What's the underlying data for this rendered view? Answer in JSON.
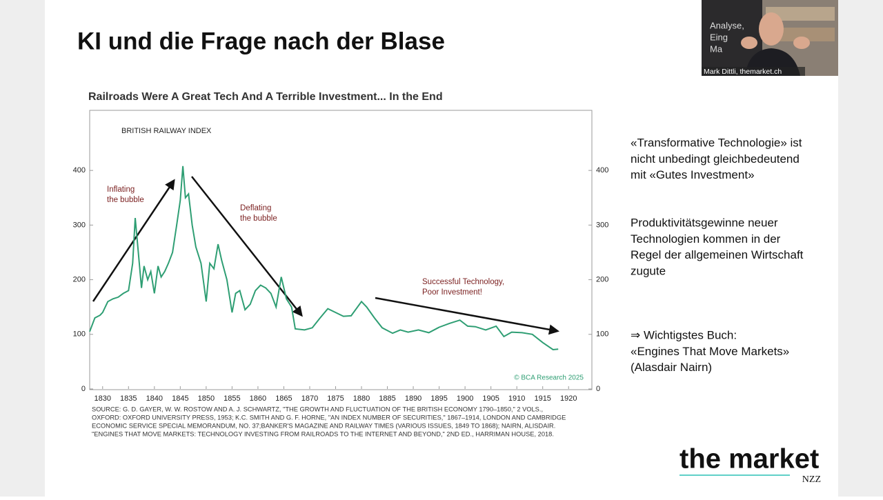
{
  "slide": {
    "title": "KI und die Frage nach der Blase",
    "points": [
      [
        "«Transformative Technologie» ist",
        "nicht unbedingt gleichbedeutend",
        "mit «Gutes Investment»"
      ],
      [
        "Produktivitätsgewinne neuer",
        "Technologien kommen in der",
        "Regel der allgemeinen Wirtschaft",
        "zugute"
      ],
      [
        "⇒ Wichtigstes Buch:",
        "«Engines That Move Markets»",
        "(Alasdair Nairn)"
      ]
    ],
    "logo": {
      "name": "the market",
      "sub": "NZZ"
    }
  },
  "video": {
    "caption": "Mark Dittli, themarket.ch",
    "backdrop": [
      "Analyse,",
      "Eing",
      "Ma"
    ]
  },
  "chart_data": {
    "type": "line",
    "title": "Railroads Were A Great Tech And A Terrible Investment... In the End",
    "subtitle": "BRITISH RAILWAY INDEX",
    "annotations": [
      [
        "Inflating",
        "the bubble"
      ],
      [
        "Deflating",
        "the bubble"
      ],
      [
        "Successful Technology,",
        "Poor Investment!"
      ]
    ],
    "credit": "© BCA Research 2025",
    "source": [
      "SOURCE: G. D. GAYER, W. W. ROSTOW AND A. J. SCHWARTZ, \"THE GROWTH AND FLUCTUATION OF THE BRITISH ECONOMY 1790–1850,\" 2 VOLS.,",
      "OXFORD: OXFORD UNIVERSITY PRESS, 1953;  K.C. SMITH AND G. F. HORNE, \"AN INDEX NUMBER OF SECURITIES,\" 1867–1914, LONDON AND CAMBRIDGE",
      "ECONOMIC SERVICE SPECIAL MEMORANDUM, NO. 37;BANKER'S MAGAZINE AND RAILWAY TIMES (VARIOUS ISSUES, 1849 TO 1868); NAIRN, ALISDAIR.",
      "\"ENGINES THAT MOVE MARKETS: TECHNOLOGY INVESTING FROM RAILROADS TO THE INTERNET AND BEYOND,\" 2ND ED., HARRIMAN HOUSE, 2018."
    ],
    "color": "#2e9e73",
    "x": [
      1827.5,
      1828.5,
      1829.5,
      1830,
      1831,
      1832,
      1833,
      1834,
      1835,
      1835.8,
      1836.3,
      1836.8,
      1837.5,
      1838,
      1838.7,
      1839.3,
      1840,
      1840.7,
      1841.3,
      1842,
      1842.7,
      1843.5,
      1844.3,
      1845,
      1845.5,
      1846,
      1846.6,
      1847.3,
      1848,
      1849,
      1850,
      1850.7,
      1851.5,
      1852.3,
      1853,
      1854,
      1855,
      1855.7,
      1856.5,
      1857.5,
      1858.5,
      1859.5,
      1860.5,
      1861.5,
      1862.5,
      1863.5,
      1864.5,
      1865.5,
      1866.5,
      1867.2,
      1869,
      1870.5,
      1872,
      1873.5,
      1875,
      1876.5,
      1878,
      1880,
      1881,
      1882.5,
      1884,
      1886,
      1887.5,
      1889,
      1891,
      1893,
      1895,
      1897,
      1899,
      1900.5,
      1902,
      1904,
      1906,
      1907.5,
      1909,
      1911,
      1913,
      1915,
      1917,
      1918
    ],
    "values": [
      105,
      130,
      135,
      140,
      160,
      165,
      168,
      175,
      180,
      230,
      313,
      260,
      185,
      225,
      200,
      215,
      175,
      225,
      205,
      215,
      230,
      250,
      300,
      345,
      408,
      350,
      357,
      300,
      260,
      230,
      160,
      230,
      220,
      265,
      235,
      200,
      140,
      175,
      180,
      145,
      155,
      180,
      190,
      185,
      175,
      150,
      205,
      165,
      150,
      110,
      108,
      112,
      130,
      147,
      140,
      133,
      134,
      160,
      150,
      130,
      112,
      102,
      108,
      104,
      108,
      103,
      113,
      120,
      126,
      115,
      114,
      108,
      115,
      96,
      104,
      103,
      100,
      85,
      72,
      73
    ],
    "xlim": [
      1827.5,
      1924.5
    ],
    "xticks": [
      1830,
      1835,
      1840,
      1845,
      1850,
      1855,
      1860,
      1865,
      1870,
      1875,
      1880,
      1885,
      1890,
      1895,
      1900,
      1905,
      1910,
      1915,
      1920
    ],
    "ylim": [
      0,
      510
    ],
    "yticks": [
      0,
      100,
      200,
      300,
      400
    ]
  }
}
